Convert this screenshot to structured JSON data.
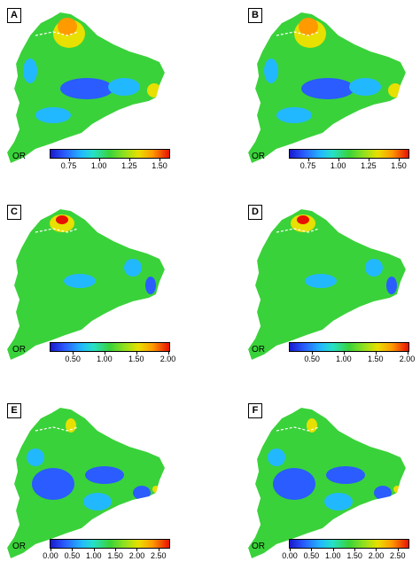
{
  "legend_title": "OR",
  "colors": {
    "low": "#1a1acc",
    "blue": "#2a5cff",
    "cyan": "#22b8ff",
    "green": "#3ad23a",
    "yellow": "#e8e000",
    "orange": "#ff9a00",
    "red": "#e81000",
    "border": "#ffffff"
  },
  "panels": [
    {
      "label": "A",
      "range": [
        0.6,
        1.58
      ],
      "ticks": [
        "0.75",
        "1.00",
        "1.25",
        "1.50"
      ],
      "tick_values": [
        0.75,
        1.0,
        1.25,
        1.5
      ]
    },
    {
      "label": "B",
      "range": [
        0.6,
        1.58
      ],
      "ticks": [
        "0.75",
        "1.00",
        "1.25",
        "1.50"
      ],
      "tick_values": [
        0.75,
        1.0,
        1.25,
        1.5
      ]
    },
    {
      "label": "C",
      "range": [
        0.15,
        2.02
      ],
      "ticks": [
        "0.50",
        "1.00",
        "1.50",
        "2.00"
      ],
      "tick_values": [
        0.5,
        1.0,
        1.5,
        2.0
      ]
    },
    {
      "label": "D",
      "range": [
        0.15,
        2.02
      ],
      "ticks": [
        "0.50",
        "1.00",
        "1.50",
        "2.00"
      ],
      "tick_values": [
        0.5,
        1.0,
        1.5,
        2.0
      ]
    },
    {
      "label": "E",
      "range": [
        0.0,
        2.75
      ],
      "ticks": [
        "0.00",
        "0.50",
        "1.00",
        "1.50",
        "2.00",
        "2.50"
      ],
      "tick_values": [
        0.0,
        0.5,
        1.0,
        1.5,
        2.0,
        2.5
      ]
    },
    {
      "label": "F",
      "range": [
        0.0,
        2.75
      ],
      "ticks": [
        "0.00",
        "0.50",
        "1.00",
        "1.50",
        "2.00",
        "2.50"
      ],
      "tick_values": [
        0.0,
        0.5,
        1.0,
        1.5,
        2.0,
        2.5
      ]
    }
  ]
}
